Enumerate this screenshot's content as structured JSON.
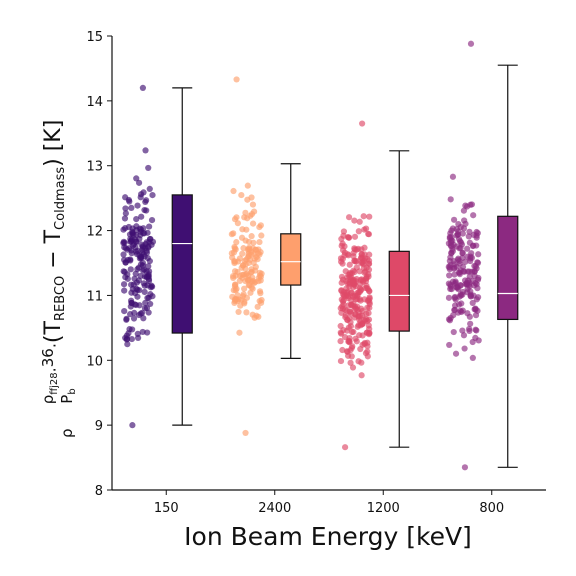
{
  "chart_data": {
    "type": "box",
    "xlabel": "Ion Beam Energy [keV]",
    "ylabel_parts": {
      "rho_ffj28": "ρ",
      "rho_ffj28_sub": "ffj28",
      "rho": "ρ",
      "frac_num": "36",
      "p_b": "P",
      "p_b_sub": "b",
      "dot": "·",
      "open": "(T",
      "t_rebco_sub": "REBCO",
      "minus": " − T",
      "t_cold_sub": "Coldmass",
      "close": ") [K]"
    },
    "ylim": [
      8,
      15
    ],
    "yticks": [
      "8",
      "9",
      "10",
      "11",
      "12",
      "13",
      "14",
      "15"
    ],
    "categories": [
      "150",
      "2400",
      "1200",
      "800"
    ],
    "colors": {
      "150": "#3f0f72",
      "2400": "#fe9f6d",
      "1200": "#de4968",
      "800": "#8c2981"
    },
    "boxes": [
      {
        "category": "150",
        "whisker_low": 9.0,
        "q1": 10.42,
        "median": 11.8,
        "q3": 12.55,
        "whisker_high": 14.2
      },
      {
        "category": "2400",
        "whisker_low": 10.03,
        "q1": 11.16,
        "median": 11.52,
        "q3": 11.95,
        "whisker_high": 13.03
      },
      {
        "category": "1200",
        "whisker_low": 8.66,
        "q1": 10.45,
        "median": 11.0,
        "q3": 11.68,
        "whisker_high": 13.23
      },
      {
        "category": "800",
        "whisker_low": 8.35,
        "q1": 10.63,
        "median": 11.03,
        "q3": 12.22,
        "whisker_high": 14.55
      }
    ],
    "points": [
      {
        "category": "150",
        "count": 190,
        "mean": 11.5,
        "sd": 1.05,
        "min": 9.0,
        "max": 14.2
      },
      {
        "category": "2400",
        "count": 150,
        "mean": 11.45,
        "sd": 0.85,
        "min": 8.88,
        "max": 14.33
      },
      {
        "category": "1200",
        "count": 260,
        "mean": 11.0,
        "sd": 0.95,
        "min": 8.66,
        "max": 13.65
      },
      {
        "category": "800",
        "count": 190,
        "mean": 11.35,
        "sd": 1.05,
        "min": 8.35,
        "max": 14.88
      }
    ]
  }
}
